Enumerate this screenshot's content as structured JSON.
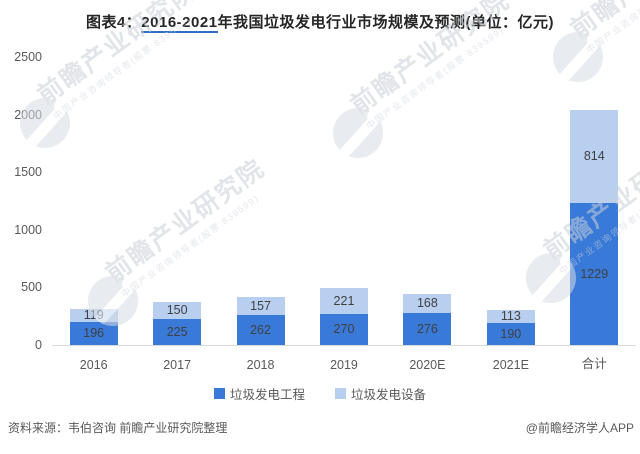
{
  "title": {
    "prefix": "图表4：",
    "range": "2016-2021",
    "suffix": "年我国垃圾发电行业市场规模及预测(单位：亿元)"
  },
  "chart_data": {
    "type": "bar",
    "stacked": true,
    "title": "图表4：2016-2021年我国垃圾发电行业市场规模及预测(单位：亿元)",
    "unit": "亿元",
    "categories": [
      "2016",
      "2017",
      "2018",
      "2019",
      "2020E",
      "2021E",
      "合计"
    ],
    "series": [
      {
        "name": "垃圾发电工程",
        "color": "#3979D8",
        "values": [
          196,
          225,
          262,
          270,
          276,
          190,
          1229
        ]
      },
      {
        "name": "垃圾发电设备",
        "color": "#B9CFF0",
        "values": [
          119,
          150,
          157,
          221,
          168,
          113,
          814
        ]
      }
    ],
    "ylim": [
      0,
      2500
    ],
    "yticks": [
      0,
      500,
      1000,
      1500,
      2000,
      2500
    ],
    "grid": false,
    "legend_position": "bottom",
    "value_labels": true
  },
  "watermark": {
    "big": "前瞻产业研究院",
    "small": "中国产业咨询领导者(股票:839599)"
  },
  "footer": {
    "source": "资料来源：韦伯咨询 前瞻产业研究院整理",
    "credit": "@前瞻经济学人APP"
  },
  "colors": {
    "bar_dark": "#3979D8",
    "bar_light": "#B9CFF0",
    "axis_line": "#D9D9D9",
    "axis_text": "#595959",
    "value_text": "#404040",
    "title_text": "#262626",
    "title_underline": "#2F6FC4",
    "watermark": "#C9CFD8"
  }
}
